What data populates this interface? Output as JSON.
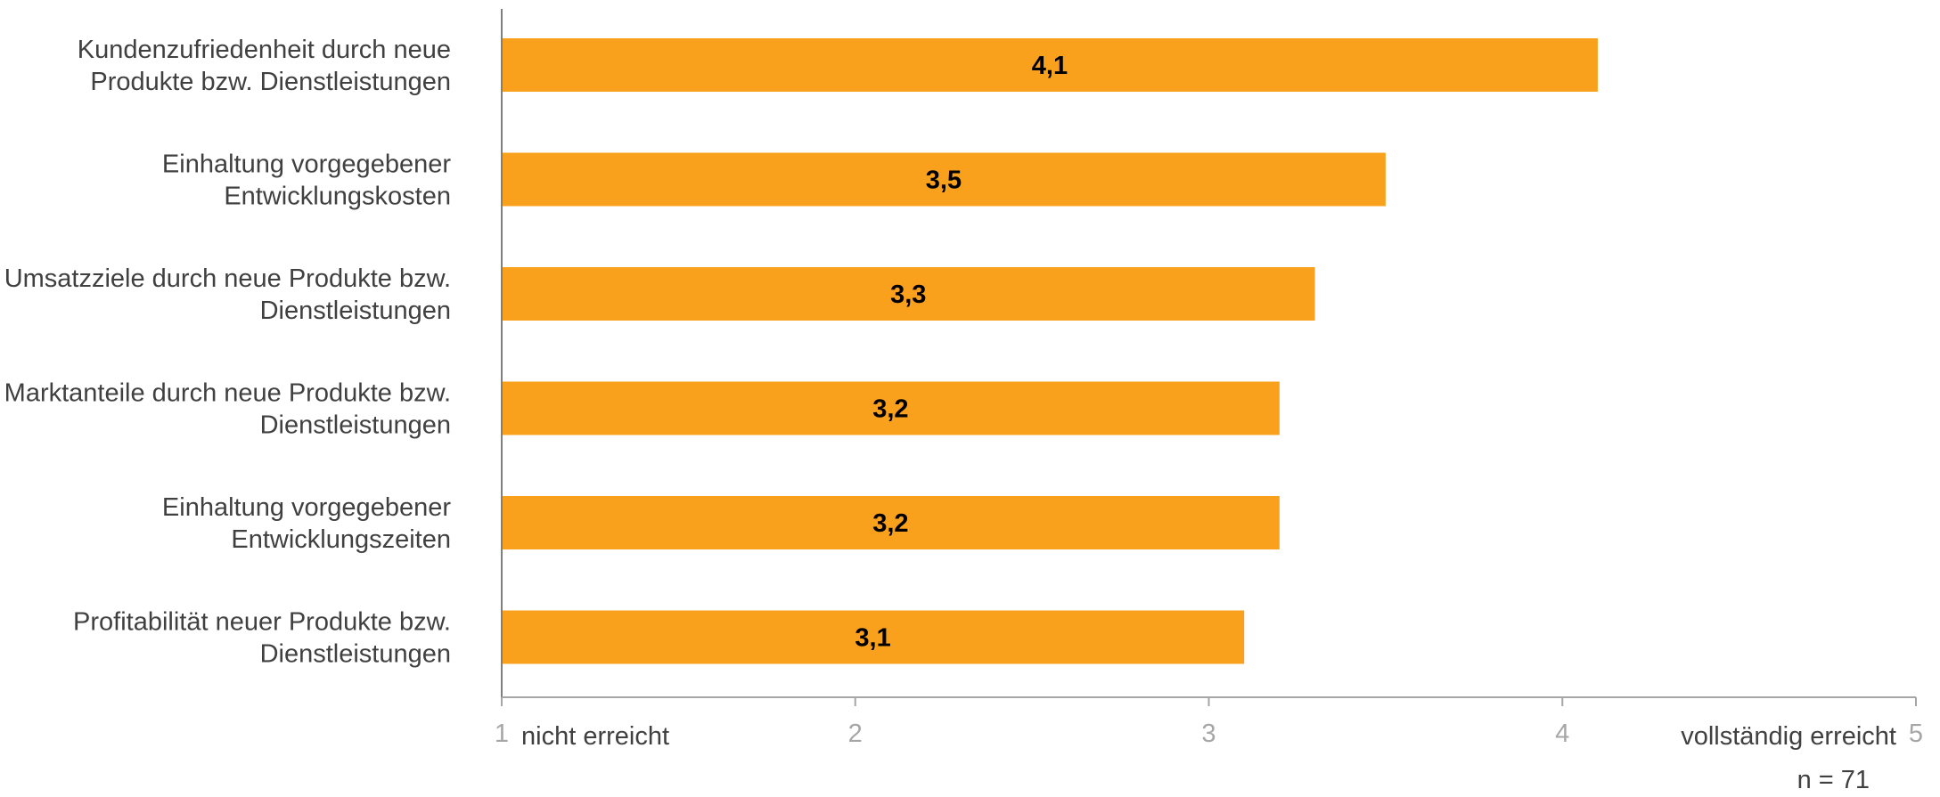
{
  "chart_data": {
    "type": "bar",
    "orientation": "horizontal",
    "categories": [
      [
        "Kundenzufriedenheit durch neue",
        "Produkte bzw. Dienstleistungen"
      ],
      [
        "Einhaltung vorgegebener",
        "Entwicklungskosten"
      ],
      [
        "Umsatzziele durch neue Produkte bzw.",
        "Dienstleistungen"
      ],
      [
        "Marktanteile durch neue Produkte bzw.",
        "Dienstleistungen"
      ],
      [
        "Einhaltung vorgegebener",
        "Entwicklungszeiten"
      ],
      [
        "Profitabilität neuer Produkte bzw.",
        "Dienstleistungen"
      ]
    ],
    "values": [
      4.1,
      3.5,
      3.3,
      3.2,
      3.2,
      3.1
    ],
    "value_labels": [
      "4,1",
      "3,5",
      "3,3",
      "3,2",
      "3,2",
      "3,1"
    ],
    "xlim": [
      1,
      5
    ],
    "xticks": [
      1,
      2,
      3,
      4,
      5
    ],
    "xtick_labels": [
      "1",
      "2",
      "3",
      "4",
      "5"
    ],
    "axis_anchor_labels": {
      "low": "nicht erreicht",
      "high": "vollständig erreicht"
    },
    "note": "n = 71",
    "bar_color": "#F9A11D",
    "grid": false,
    "legend": "none"
  }
}
